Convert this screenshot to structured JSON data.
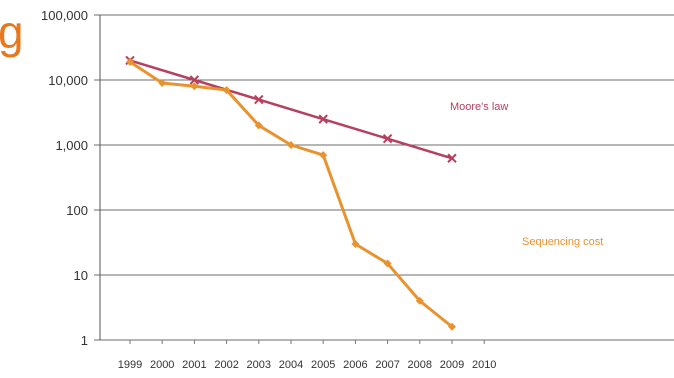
{
  "clipped_title": "g",
  "chart_data": {
    "type": "line",
    "title": "",
    "xlabel": "",
    "ylabel": "",
    "yscale": "log",
    "ylim": [
      1,
      100000
    ],
    "y_ticks": [
      1,
      10,
      100,
      1000,
      10000,
      100000
    ],
    "y_tick_labels": [
      "1",
      "10",
      "100",
      "1,000",
      "10,000",
      "100,000"
    ],
    "x_tick_labels": [
      "1999",
      "2000",
      "2001",
      "2002",
      "2003",
      "2004",
      "2005",
      "2006",
      "2007",
      "2008",
      "2009",
      "2010"
    ],
    "grid": "horizontal",
    "series": [
      {
        "name": "Moore's law",
        "color": "#b5405f",
        "marker": "x",
        "points": [
          {
            "x": "1999",
            "y": 20000
          },
          {
            "x": "2001",
            "y": 10000
          },
          {
            "x": "2003",
            "y": 5000
          },
          {
            "x": "2005",
            "y": 2500
          },
          {
            "x": "2007",
            "y": 1250
          },
          {
            "x": "2009",
            "y": 625
          }
        ]
      },
      {
        "name": "Sequencing cost",
        "color": "#e8932f",
        "marker": "diamond",
        "points": [
          {
            "x": "1999",
            "y": 19000
          },
          {
            "x": "2000",
            "y": 9000
          },
          {
            "x": "2001",
            "y": 8000
          },
          {
            "x": "2002",
            "y": 7000
          },
          {
            "x": "2003",
            "y": 2000
          },
          {
            "x": "2004",
            "y": 1000
          },
          {
            "x": "2005",
            "y": 700
          },
          {
            "x": "2006",
            "y": 30
          },
          {
            "x": "2007",
            "y": 15
          },
          {
            "x": "2008",
            "y": 4
          },
          {
            "x": "2009",
            "y": 1.6
          }
        ]
      }
    ]
  }
}
